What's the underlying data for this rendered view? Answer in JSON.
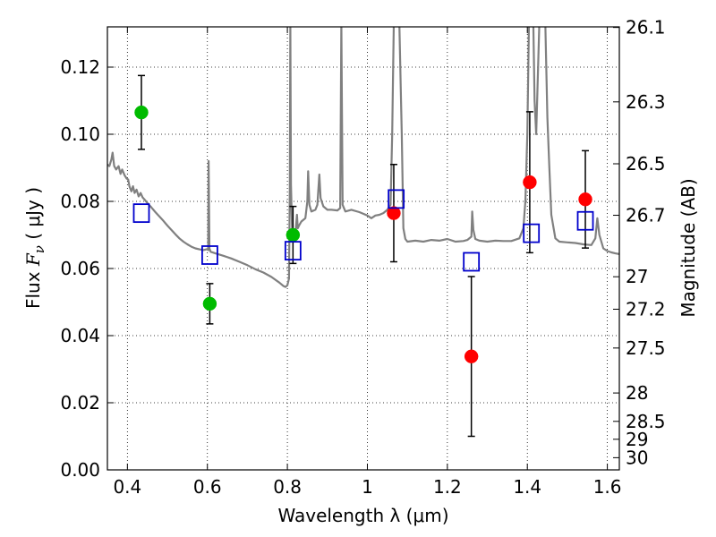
{
  "chart_data": {
    "type": "scatter",
    "xlabel": "Wavelength  λ (μm)",
    "ylabel_parts": [
      "Flux  ",
      "F",
      "ν",
      "  ( μJy )"
    ],
    "ylabel_right": "Magnitude (AB)",
    "xlim": [
      0.35,
      1.63
    ],
    "ylim": [
      0.0,
      0.132
    ],
    "x_ticks": [
      0.4,
      0.6,
      0.8,
      1.0,
      1.2,
      1.4,
      1.6
    ],
    "x_tick_labels": [
      "0.4",
      "0.6",
      "0.8",
      "1",
      "1.2",
      "1.4",
      "1.6"
    ],
    "y_ticks": [
      0.0,
      0.02,
      0.04,
      0.06,
      0.08,
      0.1,
      0.12
    ],
    "y_tick_labels": [
      "0.00",
      "0.02",
      "0.04",
      "0.06",
      "0.08",
      "0.10",
      "0.12"
    ],
    "mag_ticks": [
      26.1,
      26.3,
      26.5,
      26.7,
      27,
      27.2,
      27.5,
      28,
      28.5,
      29,
      30
    ],
    "mag_tick_labels": [
      "26.1",
      "26.3",
      "26.5",
      "26.7",
      "27",
      "27.2",
      "27.5",
      "28",
      "28.5",
      "29",
      "30"
    ],
    "grid": true,
    "colors": {
      "green": "#00bb00",
      "red": "#ff0000",
      "model_box": "#0000cc",
      "spectrum": "#808080",
      "errorbar": "#000000"
    },
    "series": [
      {
        "marker": "circle",
        "color": "green",
        "points": [
          {
            "x": 0.435,
            "y": 0.1065,
            "yerr_low": 0.011,
            "yerr_high": 0.011
          },
          {
            "x": 0.606,
            "y": 0.0495,
            "yerr_low": 0.006,
            "yerr_high": 0.006
          },
          {
            "x": 0.814,
            "y": 0.07,
            "yerr_low": 0.0085,
            "yerr_high": 0.0085
          }
        ]
      },
      {
        "marker": "circle",
        "color": "red",
        "points": [
          {
            "x": 1.066,
            "y": 0.0765,
            "yerr_low": 0.0145,
            "yerr_high": 0.0145
          },
          {
            "x": 1.26,
            "y": 0.0338,
            "yerr_low": 0.0238,
            "yerr_high": 0.0238
          },
          {
            "x": 1.406,
            "y": 0.0857,
            "yerr_low": 0.021,
            "yerr_high": 0.021
          },
          {
            "x": 1.545,
            "y": 0.0806,
            "yerr_low": 0.0145,
            "yerr_high": 0.0145
          }
        ]
      },
      {
        "marker": "open-square",
        "color": "model_box",
        "points": [
          {
            "x": 0.435,
            "y": 0.0765
          },
          {
            "x": 0.606,
            "y": 0.064
          },
          {
            "x": 0.814,
            "y": 0.0653
          },
          {
            "x": 1.072,
            "y": 0.0807
          },
          {
            "x": 1.26,
            "y": 0.062
          },
          {
            "x": 1.41,
            "y": 0.0705
          },
          {
            "x": 1.545,
            "y": 0.0742
          }
        ]
      }
    ],
    "spectrum": [
      [
        0.35,
        0.091
      ],
      [
        0.355,
        0.0905
      ],
      [
        0.36,
        0.0925
      ],
      [
        0.363,
        0.0945
      ],
      [
        0.367,
        0.0905
      ],
      [
        0.372,
        0.0895
      ],
      [
        0.378,
        0.0905
      ],
      [
        0.383,
        0.0882
      ],
      [
        0.387,
        0.0895
      ],
      [
        0.393,
        0.0878
      ],
      [
        0.398,
        0.0868
      ],
      [
        0.402,
        0.0865
      ],
      [
        0.405,
        0.0845
      ],
      [
        0.41,
        0.083
      ],
      [
        0.414,
        0.0845
      ],
      [
        0.418,
        0.0825
      ],
      [
        0.423,
        0.0835
      ],
      [
        0.428,
        0.0815
      ],
      [
        0.433,
        0.0825
      ],
      [
        0.438,
        0.0812
      ],
      [
        0.443,
        0.0805
      ],
      [
        0.45,
        0.0795
      ],
      [
        0.46,
        0.0782
      ],
      [
        0.47,
        0.0768
      ],
      [
        0.48,
        0.0755
      ],
      [
        0.49,
        0.0742
      ],
      [
        0.5,
        0.0728
      ],
      [
        0.51,
        0.0715
      ],
      [
        0.52,
        0.0702
      ],
      [
        0.53,
        0.069
      ],
      [
        0.54,
        0.068
      ],
      [
        0.55,
        0.0672
      ],
      [
        0.56,
        0.0665
      ],
      [
        0.57,
        0.066
      ],
      [
        0.58,
        0.0657
      ],
      [
        0.59,
        0.0655
      ],
      [
        0.6,
        0.0658
      ],
      [
        0.602,
        0.0655
      ],
      [
        0.603,
        0.092
      ],
      [
        0.605,
        0.066
      ],
      [
        0.608,
        0.065
      ],
      [
        0.62,
        0.0645
      ],
      [
        0.64,
        0.0638
      ],
      [
        0.66,
        0.063
      ],
      [
        0.68,
        0.062
      ],
      [
        0.7,
        0.061
      ],
      [
        0.72,
        0.0598
      ],
      [
        0.74,
        0.0588
      ],
      [
        0.76,
        0.0575
      ],
      [
        0.78,
        0.0558
      ],
      [
        0.79,
        0.0548
      ],
      [
        0.795,
        0.0545
      ],
      [
        0.8,
        0.055
      ],
      [
        0.804,
        0.057
      ],
      [
        0.806,
        0.084
      ],
      [
        0.8075,
        0.133
      ],
      [
        0.809,
        0.085
      ],
      [
        0.812,
        0.07
      ],
      [
        0.816,
        0.0705
      ],
      [
        0.82,
        0.07
      ],
      [
        0.824,
        0.076
      ],
      [
        0.826,
        0.072
      ],
      [
        0.83,
        0.073
      ],
      [
        0.835,
        0.074
      ],
      [
        0.84,
        0.0745
      ],
      [
        0.845,
        0.075
      ],
      [
        0.85,
        0.08
      ],
      [
        0.852,
        0.089
      ],
      [
        0.855,
        0.079
      ],
      [
        0.86,
        0.077
      ],
      [
        0.87,
        0.0775
      ],
      [
        0.875,
        0.079
      ],
      [
        0.88,
        0.088
      ],
      [
        0.883,
        0.081
      ],
      [
        0.89,
        0.0785
      ],
      [
        0.9,
        0.0775
      ],
      [
        0.91,
        0.0775
      ],
      [
        0.925,
        0.0773
      ],
      [
        0.932,
        0.078
      ],
      [
        0.935,
        0.133
      ],
      [
        0.938,
        0.079
      ],
      [
        0.945,
        0.077
      ],
      [
        0.96,
        0.0775
      ],
      [
        0.98,
        0.0768
      ],
      [
        0.99,
        0.0763
      ],
      [
        1.0,
        0.0758
      ],
      [
        1.01,
        0.075
      ],
      [
        1.02,
        0.0758
      ],
      [
        1.03,
        0.076
      ],
      [
        1.04,
        0.0765
      ],
      [
        1.05,
        0.0775
      ],
      [
        1.058,
        0.079
      ],
      [
        1.062,
        0.1
      ],
      [
        1.066,
        0.133
      ],
      [
        1.08,
        0.133
      ],
      [
        1.086,
        0.1
      ],
      [
        1.09,
        0.072
      ],
      [
        1.095,
        0.0688
      ],
      [
        1.1,
        0.068
      ],
      [
        1.12,
        0.0683
      ],
      [
        1.14,
        0.068
      ],
      [
        1.16,
        0.0685
      ],
      [
        1.18,
        0.0683
      ],
      [
        1.2,
        0.0688
      ],
      [
        1.22,
        0.068
      ],
      [
        1.24,
        0.0682
      ],
      [
        1.25,
        0.0685
      ],
      [
        1.26,
        0.0695
      ],
      [
        1.262,
        0.077
      ],
      [
        1.265,
        0.0715
      ],
      [
        1.27,
        0.0688
      ],
      [
        1.28,
        0.0683
      ],
      [
        1.3,
        0.068
      ],
      [
        1.32,
        0.0683
      ],
      [
        1.34,
        0.0682
      ],
      [
        1.36,
        0.0682
      ],
      [
        1.38,
        0.069
      ],
      [
        1.39,
        0.072
      ],
      [
        1.395,
        0.08
      ],
      [
        1.4,
        0.1
      ],
      [
        1.404,
        0.133
      ],
      [
        1.415,
        0.133
      ],
      [
        1.418,
        0.11
      ],
      [
        1.422,
        0.1
      ],
      [
        1.43,
        0.133
      ],
      [
        1.445,
        0.133
      ],
      [
        1.45,
        0.105
      ],
      [
        1.455,
        0.09
      ],
      [
        1.46,
        0.076
      ],
      [
        1.47,
        0.069
      ],
      [
        1.48,
        0.068
      ],
      [
        1.5,
        0.0678
      ],
      [
        1.52,
        0.0676
      ],
      [
        1.54,
        0.0672
      ],
      [
        1.56,
        0.067
      ],
      [
        1.57,
        0.069
      ],
      [
        1.575,
        0.075
      ],
      [
        1.58,
        0.07
      ],
      [
        1.59,
        0.066
      ],
      [
        1.6,
        0.0652
      ],
      [
        1.61,
        0.0648
      ],
      [
        1.62,
        0.0645
      ],
      [
        1.63,
        0.0643
      ]
    ]
  }
}
